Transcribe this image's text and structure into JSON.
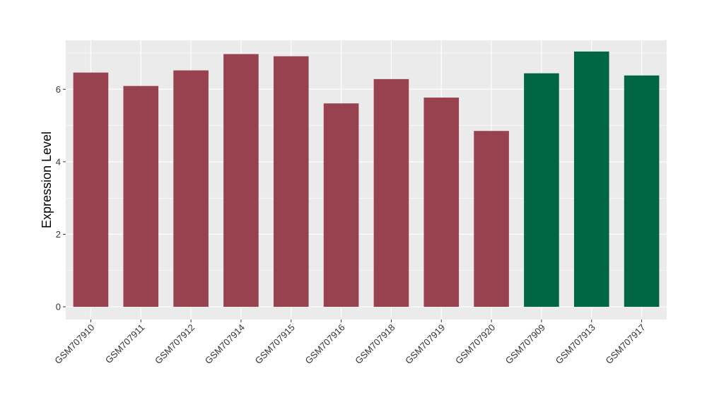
{
  "chart_data": {
    "type": "bar",
    "title": "",
    "xlabel": "",
    "ylabel": "Expression Level",
    "ylim": [
      -0.35,
      7.35
    ],
    "yticks": [
      0,
      2,
      4,
      6
    ],
    "grid": true,
    "categories": [
      "GSM707910",
      "GSM707911",
      "GSM707912",
      "GSM707914",
      "GSM707915",
      "GSM707916",
      "GSM707918",
      "GSM707919",
      "GSM707920",
      "GSM707909",
      "GSM707913",
      "GSM707917"
    ],
    "values": [
      6.46,
      6.09,
      6.52,
      6.97,
      6.91,
      5.61,
      6.28,
      5.77,
      4.85,
      6.44,
      7.04,
      6.38
    ],
    "bar_colors": [
      "#99424f",
      "#99424f",
      "#99424f",
      "#99424f",
      "#99424f",
      "#99424f",
      "#99424f",
      "#99424f",
      "#99424f",
      "#006644",
      "#006644",
      "#006644"
    ],
    "panel_background": "#ebebeb",
    "grid_color": "#ffffff"
  }
}
